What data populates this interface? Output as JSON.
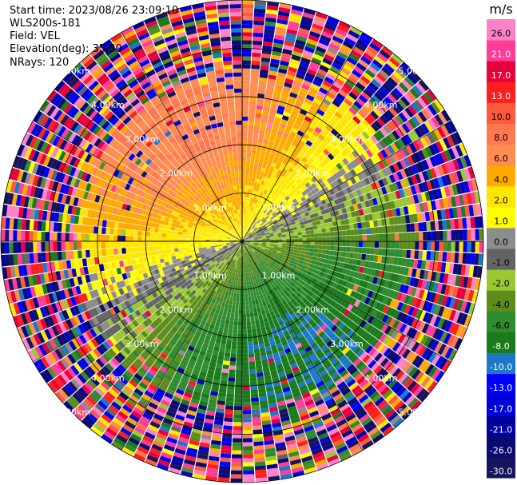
{
  "header": {
    "start_time_label": "Start time:",
    "start_time": "2023/08/26 23:09:10",
    "device": "WLS200s-181",
    "field_label": "Field:",
    "field": "VEL",
    "elevation_label": "Elevation(deg):",
    "elevation": "35.30",
    "nrays_label": "NRays:",
    "nrays": "120"
  },
  "chart_data": {
    "type": "heatmap",
    "projection": "polar-ppi",
    "field": "VEL",
    "unit": "m/s",
    "nrays": 120,
    "range_rings_km": [
      1,
      2,
      3,
      4,
      5
    ],
    "range_ring_labels": [
      "1.00km",
      "2.00km",
      "3.00km",
      "4.00km",
      "5.00km"
    ],
    "max_range_km": 5.0,
    "spokes_deg": [
      0,
      30,
      60,
      90,
      120,
      150,
      180,
      210,
      240,
      270,
      300,
      330
    ],
    "colorbar": {
      "title": "m/s",
      "ticks": [
        "26.0",
        "21.0",
        "17.0",
        "13.0",
        "10.0",
        "8.0",
        "6.0",
        "4.0",
        "2.0",
        "1.0",
        "0.0",
        "-1.0",
        "-2.0",
        "-4.0",
        "-6.0",
        "-8.0",
        "-10.0",
        "-13.0",
        "-17.0",
        "-21.0",
        "-26.0",
        "-30.0"
      ],
      "bounds": [
        -30,
        -26,
        -21,
        -17,
        -13,
        -10,
        -8,
        -6,
        -4,
        -2,
        -1,
        0,
        1,
        2,
        4,
        6,
        8,
        10,
        13,
        17,
        21,
        26,
        30
      ],
      "colors": [
        "#17145e",
        "#0a0a70",
        "#0000a0",
        "#0000d8",
        "#0000ff",
        "#1e78c8",
        "#1b7a1b",
        "#2e8b2e",
        "#5c8c1c",
        "#9ac832",
        "#646464",
        "#8c8c8c",
        "#ffff00",
        "#ffe600",
        "#ffaa00",
        "#ff8c50",
        "#ff7850",
        "#ff5a3c",
        "#ff1e1e",
        "#e6003c",
        "#ff3c96",
        "#ff82c8"
      ]
    },
    "velocity_pattern": {
      "description_sectors": [
        {
          "azimuth_deg_from": 270,
          "azimuth_deg_to": 75,
          "range_km_max": 2.3,
          "sign": "positive"
        },
        {
          "azimuth_deg_from": 100,
          "azimuth_deg_to": 240,
          "range_km_max": 3.0,
          "sign": "negative"
        }
      ],
      "noise_beyond_km": 3.3
    }
  }
}
